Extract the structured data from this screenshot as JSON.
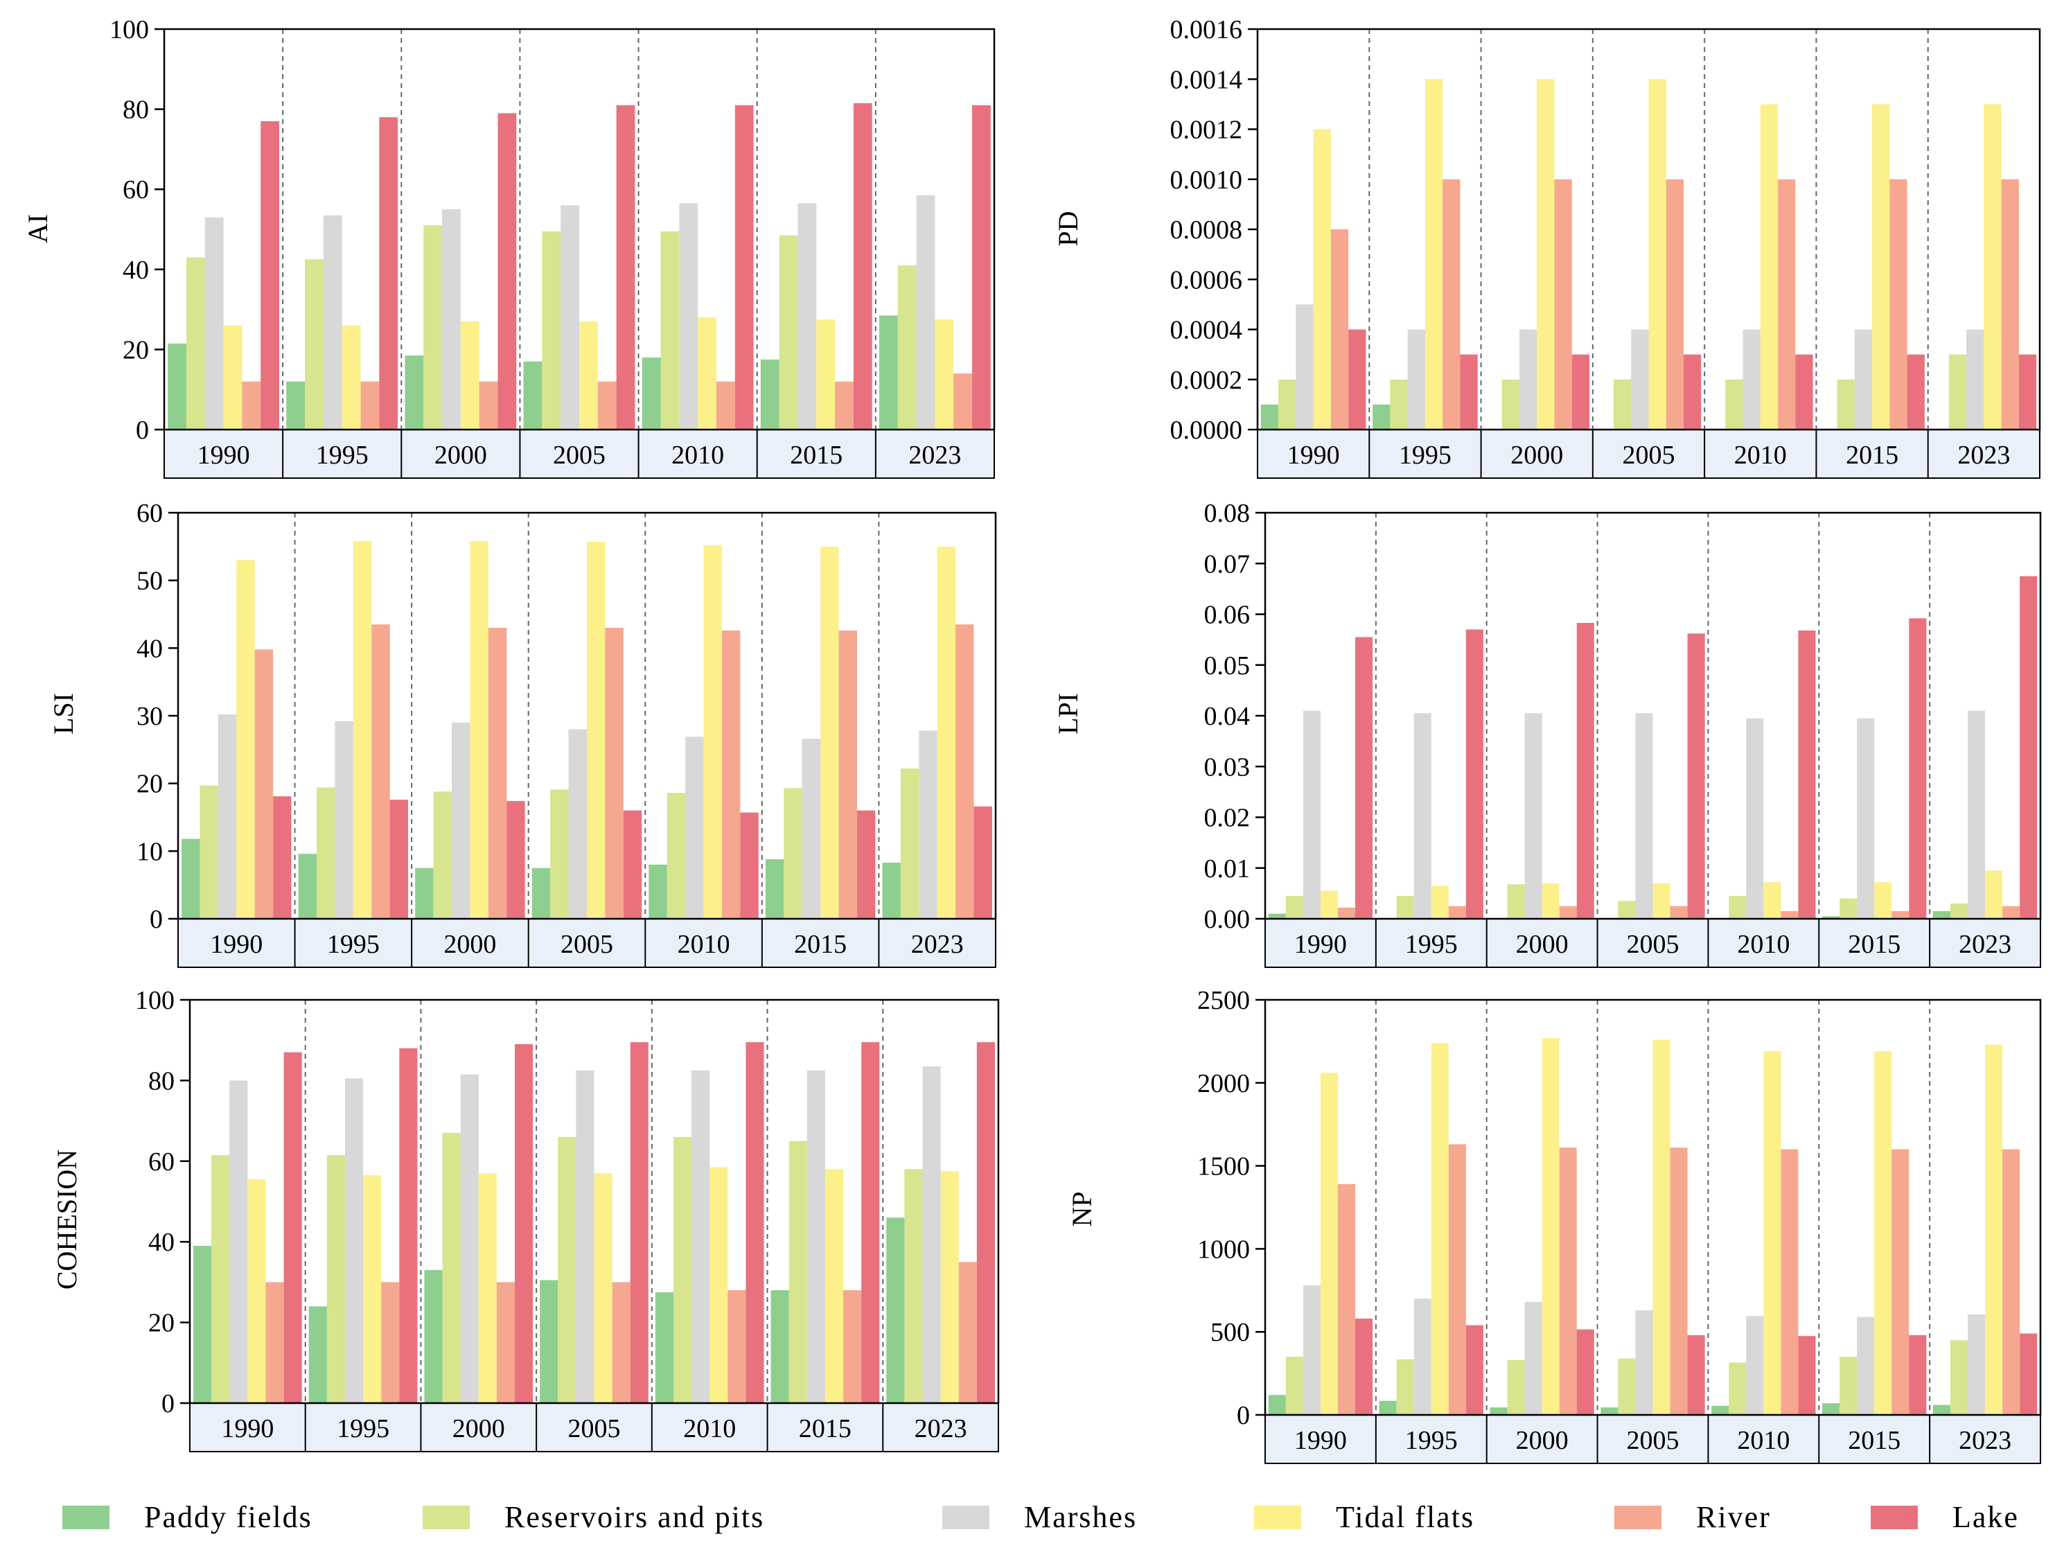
{
  "colors": {
    "paddy": "#8ecf8f",
    "reservoirs": "#d6e58e",
    "marshes": "#d8d8d8",
    "tidal": "#fbf08a",
    "river": "#f5a88f",
    "lake": "#e9717e",
    "year_band": "#e9f0fa"
  },
  "legend": {
    "entries": [
      {
        "name": "Paddy fields",
        "color": "#8ecf8f"
      },
      {
        "name": "Reservoirs and pits",
        "color": "#d6e58e"
      },
      {
        "name": "Marshes",
        "color": "#d8d8d8"
      },
      {
        "name": "Tidal flats",
        "color": "#fbf08a"
      },
      {
        "name": "River",
        "color": "#f5a88f"
      },
      {
        "name": "Lake",
        "color": "#e9717e"
      }
    ]
  },
  "chart_data": [
    {
      "type": "bar",
      "ylabel": "AI",
      "ylim": [
        0,
        100
      ],
      "yticks": [
        "0",
        "20",
        "40",
        "60",
        "80",
        "100"
      ],
      "categories": [
        "1990",
        "1995",
        "2000",
        "2005",
        "2010",
        "2015",
        "2023"
      ],
      "series": [
        {
          "name": "Paddy fields",
          "values": [
            21.5,
            12,
            18.5,
            17,
            18,
            17.5,
            28.5
          ]
        },
        {
          "name": "Reservoirs and pits",
          "values": [
            43,
            42.5,
            51,
            49.5,
            49.5,
            48.5,
            41
          ]
        },
        {
          "name": "Marshes",
          "values": [
            53,
            53.5,
            55,
            56,
            56.5,
            56.5,
            58.5
          ]
        },
        {
          "name": "Tidal flats",
          "values": [
            26,
            26,
            27,
            27,
            28,
            27.5,
            27.5
          ]
        },
        {
          "name": "River",
          "values": [
            12,
            12,
            12,
            12,
            12,
            12,
            14
          ]
        },
        {
          "name": "Lake",
          "values": [
            77,
            78,
            79,
            81,
            81,
            81.5,
            81
          ]
        }
      ]
    },
    {
      "type": "bar",
      "ylabel": "PD",
      "ylim": [
        0,
        0.0016
      ],
      "yticks": [
        "0.0000",
        "0.0002",
        "0.0004",
        "0.0006",
        "0.0008",
        "0.0010",
        "0.0012",
        "0.0014",
        "0.0016"
      ],
      "categories": [
        "1990",
        "1995",
        "2000",
        "2005",
        "2010",
        "2015",
        "2023"
      ],
      "series": [
        {
          "name": "Paddy fields",
          "values": [
            0.0001,
            0.0001,
            0,
            0,
            0,
            0,
            0
          ]
        },
        {
          "name": "Reservoirs and pits",
          "values": [
            0.0002,
            0.0002,
            0.0002,
            0.0002,
            0.0002,
            0.0002,
            0.0003
          ]
        },
        {
          "name": "Marshes",
          "values": [
            0.0005,
            0.0004,
            0.0004,
            0.0004,
            0.0004,
            0.0004,
            0.0004
          ]
        },
        {
          "name": "Tidal flats",
          "values": [
            0.0012,
            0.0014,
            0.0014,
            0.0014,
            0.0013,
            0.0013,
            0.0013
          ]
        },
        {
          "name": "River",
          "values": [
            0.0008,
            0.001,
            0.001,
            0.001,
            0.001,
            0.001,
            0.001
          ]
        },
        {
          "name": "Lake",
          "values": [
            0.0004,
            0.0003,
            0.0003,
            0.0003,
            0.0003,
            0.0003,
            0.0003
          ]
        }
      ]
    },
    {
      "type": "bar",
      "ylabel": "LSI",
      "ylim": [
        0,
        60
      ],
      "yticks": [
        "0",
        "10",
        "20",
        "30",
        "40",
        "50",
        "60"
      ],
      "categories": [
        "1990",
        "1995",
        "2000",
        "2005",
        "2010",
        "2015",
        "2023"
      ],
      "series": [
        {
          "name": "Paddy fields",
          "values": [
            11.8,
            9.6,
            7.5,
            7.5,
            8,
            8.8,
            8.3
          ]
        },
        {
          "name": "Reservoirs and pits",
          "values": [
            19.7,
            19.4,
            18.8,
            19.1,
            18.6,
            19.3,
            22.2
          ]
        },
        {
          "name": "Marshes",
          "values": [
            30.2,
            29.2,
            29,
            28,
            26.9,
            26.6,
            27.8
          ]
        },
        {
          "name": "Tidal flats",
          "values": [
            53,
            55.8,
            55.8,
            55.7,
            55.2,
            55,
            55
          ]
        },
        {
          "name": "River",
          "values": [
            39.8,
            43.5,
            43,
            43,
            42.6,
            42.6,
            43.5
          ]
        },
        {
          "name": "Lake",
          "values": [
            18.1,
            17.6,
            17.4,
            16,
            15.7,
            16,
            16.6
          ]
        }
      ]
    },
    {
      "type": "bar",
      "ylabel": "LPI",
      "ylim": [
        0,
        0.08
      ],
      "yticks": [
        "0.00",
        "0.01",
        "0.02",
        "0.03",
        "0.04",
        "0.05",
        "0.06",
        "0.07",
        "0.08"
      ],
      "categories": [
        "1990",
        "1995",
        "2000",
        "2005",
        "2010",
        "2015",
        "2023"
      ],
      "series": [
        {
          "name": "Paddy fields",
          "values": [
            0.001,
            0,
            0,
            0,
            0,
            0.0005,
            0.0015
          ]
        },
        {
          "name": "Reservoirs and pits",
          "values": [
            0.0045,
            0.0045,
            0.0068,
            0.0035,
            0.0045,
            0.004,
            0.003
          ]
        },
        {
          "name": "Marshes",
          "values": [
            0.041,
            0.0405,
            0.0405,
            0.0405,
            0.0395,
            0.0395,
            0.041
          ]
        },
        {
          "name": "Tidal flats",
          "values": [
            0.0055,
            0.0065,
            0.007,
            0.007,
            0.0072,
            0.0072,
            0.0095
          ]
        },
        {
          "name": "River",
          "values": [
            0.0022,
            0.0025,
            0.0025,
            0.0025,
            0.0015,
            0.0015,
            0.0025
          ]
        },
        {
          "name": "Lake",
          "values": [
            0.0555,
            0.057,
            0.0583,
            0.0562,
            0.0568,
            0.0592,
            0.0675
          ]
        }
      ]
    },
    {
      "type": "bar",
      "ylabel": "COHESION",
      "ylim": [
        0,
        100
      ],
      "yticks": [
        "0",
        "20",
        "40",
        "60",
        "80",
        "100"
      ],
      "categories": [
        "1990",
        "1995",
        "2000",
        "2005",
        "2010",
        "2015",
        "2023"
      ],
      "series": [
        {
          "name": "Paddy fields",
          "values": [
            39,
            24,
            33,
            30.5,
            27.5,
            28,
            46
          ]
        },
        {
          "name": "Reservoirs and pits",
          "values": [
            61.5,
            61.5,
            67,
            66,
            66,
            65,
            58
          ]
        },
        {
          "name": "Marshes",
          "values": [
            80,
            80.5,
            81.5,
            82.5,
            82.5,
            82.5,
            83.5
          ]
        },
        {
          "name": "Tidal flats",
          "values": [
            55.5,
            56.5,
            57,
            57,
            58.5,
            58,
            57.5
          ]
        },
        {
          "name": "River",
          "values": [
            30,
            30,
            30,
            30,
            28,
            28,
            35
          ]
        },
        {
          "name": "Lake",
          "values": [
            87,
            88,
            89,
            89.5,
            89.5,
            89.5,
            89.5
          ]
        }
      ]
    },
    {
      "type": "bar",
      "ylabel": "NP",
      "ylim": [
        0,
        2500
      ],
      "yticks": [
        "0",
        "500",
        "1000",
        "1500",
        "2000",
        "2500"
      ],
      "categories": [
        "1990",
        "1995",
        "2000",
        "2005",
        "2010",
        "2015",
        "2023"
      ],
      "series": [
        {
          "name": "Paddy fields",
          "values": [
            120,
            85,
            45,
            45,
            55,
            70,
            60
          ]
        },
        {
          "name": "Reservoirs and pits",
          "values": [
            350,
            335,
            330,
            340,
            315,
            350,
            450
          ]
        },
        {
          "name": "Marshes",
          "values": [
            780,
            700,
            680,
            630,
            595,
            590,
            605
          ]
        },
        {
          "name": "Tidal flats",
          "values": [
            2060,
            2240,
            2270,
            2260,
            2190,
            2190,
            2230
          ]
        },
        {
          "name": "River",
          "values": [
            1390,
            1630,
            1610,
            1610,
            1600,
            1600,
            1600
          ]
        },
        {
          "name": "Lake",
          "values": [
            580,
            540,
            515,
            480,
            475,
            480,
            490
          ]
        }
      ]
    }
  ]
}
